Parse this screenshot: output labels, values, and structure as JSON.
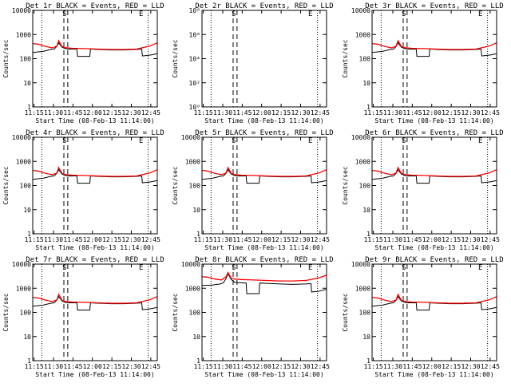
{
  "chart_data": [
    {
      "type": "line",
      "title": "Det 1r BLACK = Events, RED = LLD",
      "xlabel": "Start Time (08-Feb-13 11:14:00)",
      "ylabel": "Counts/sec",
      "log_y": true,
      "x_ticks": [
        "11:15",
        "11:30",
        "11:45",
        "12:00",
        "12:15",
        "12:30",
        "12:45"
      ],
      "x_tick_minutes": [
        1,
        16,
        31,
        46,
        61,
        76,
        91
      ],
      "xlim_minutes": [
        0,
        96
      ],
      "y_ticks": [
        "1",
        "10",
        "100",
        "1000",
        "10000"
      ],
      "ylim": [
        1,
        10000
      ],
      "markers": [
        {
          "label": "S",
          "x_minute": 24.5
        },
        {
          "label": "E",
          "x_minute": 83.5
        }
      ],
      "series": [
        {
          "color": "#000000",
          "x": [
            0,
            8,
            14,
            16.5,
            18.5,
            20,
            22.5,
            25,
            27.5,
            34,
            34.5,
            44,
            44.5,
            50,
            60,
            70,
            80,
            84,
            84.5,
            90,
            92,
            96
          ],
          "y": [
            180,
            200,
            240,
            250,
            320,
            450,
            300,
            260,
            250,
            250,
            125,
            125,
            250,
            240,
            230,
            230,
            240,
            250,
            130,
            140,
            145,
            160
          ]
        },
        {
          "color": "#ff0000",
          "x": [
            0,
            4,
            10,
            15,
            18.5,
            20,
            22.5,
            25,
            30,
            40,
            50,
            60,
            70,
            80,
            90,
            96
          ],
          "y": [
            420,
            400,
            320,
            280,
            330,
            560,
            320,
            285,
            270,
            260,
            250,
            240,
            240,
            250,
            330,
            450
          ]
        }
      ]
    },
    {
      "type": "line",
      "title": "Det 2r BLACK = Events, RED = LLD",
      "xlabel": "Start Time (08-Feb-13 11:14:00)",
      "ylabel": "Counts/sec",
      "log_y": true,
      "x_ticks": [
        "11:15",
        "11:30",
        "11:45",
        "12:00",
        "12:15",
        "12:30",
        "12:45"
      ],
      "x_tick_minutes": [
        1,
        16,
        31,
        46,
        61,
        76,
        91
      ],
      "xlim_minutes": [
        0,
        96
      ],
      "y_ticks": [
        "10⁰",
        "10²",
        "10⁴",
        "10⁶",
        "10⁸"
      ],
      "y_tick_values": [
        1,
        100,
        10000,
        1000000,
        100000000
      ],
      "ylim": [
        1,
        100000000
      ],
      "markers": [
        {
          "label": "S",
          "x_minute": 24.5
        },
        {
          "label": "E",
          "x_minute": 83.5
        }
      ],
      "series": []
    },
    {
      "type": "line",
      "title": "Det 3r BLACK = Events, RED = LLD",
      "xlabel": "Start Time (08-Feb-13 11:14:00)",
      "ylabel": "Counts/sec",
      "log_y": true,
      "x_ticks": [
        "11:15",
        "11:30",
        "11:45",
        "12:00",
        "12:15",
        "12:30",
        "12:45"
      ],
      "x_tick_minutes": [
        1,
        16,
        31,
        46,
        61,
        76,
        91
      ],
      "xlim_minutes": [
        0,
        96
      ],
      "y_ticks": [
        "1",
        "10",
        "100",
        "1000",
        "10000"
      ],
      "ylim": [
        1,
        10000
      ],
      "markers": [
        {
          "label": "S",
          "x_minute": 24.5
        },
        {
          "label": "E",
          "x_minute": 83.5
        }
      ],
      "series": [
        {
          "color": "#000000",
          "x": [
            0,
            8,
            14,
            16.5,
            18.5,
            20,
            22.5,
            25,
            27.5,
            34,
            34.5,
            44,
            44.5,
            50,
            60,
            70,
            80,
            84,
            84.5,
            90,
            92,
            96
          ],
          "y": [
            180,
            200,
            240,
            250,
            320,
            450,
            300,
            260,
            250,
            250,
            125,
            125,
            250,
            240,
            230,
            230,
            240,
            250,
            130,
            140,
            145,
            160
          ]
        },
        {
          "color": "#ff0000",
          "x": [
            0,
            4,
            10,
            15,
            18.5,
            20,
            22.5,
            25,
            30,
            40,
            50,
            60,
            70,
            80,
            90,
            96
          ],
          "y": [
            420,
            400,
            320,
            280,
            330,
            560,
            320,
            285,
            270,
            260,
            250,
            240,
            240,
            250,
            330,
            450
          ]
        }
      ]
    },
    {
      "type": "line",
      "title": "Det 4r BLACK = Events, RED = LLD",
      "xlabel": "Start Time (08-Feb-13 11:14:00)",
      "ylabel": "Counts/sec",
      "log_y": true,
      "x_ticks": [
        "11:15",
        "11:30",
        "11:45",
        "12:00",
        "12:15",
        "12:30",
        "12:45"
      ],
      "x_tick_minutes": [
        1,
        16,
        31,
        46,
        61,
        76,
        91
      ],
      "xlim_minutes": [
        0,
        96
      ],
      "y_ticks": [
        "1",
        "10",
        "100",
        "1000",
        "10000"
      ],
      "ylim": [
        1,
        10000
      ],
      "markers": [
        {
          "label": "S",
          "x_minute": 24.5
        },
        {
          "label": "E",
          "x_minute": 83.5
        }
      ],
      "series": [
        {
          "color": "#000000",
          "x": [
            0,
            8,
            14,
            16.5,
            18.5,
            20,
            22.5,
            25,
            27.5,
            34,
            34.5,
            44,
            44.5,
            50,
            60,
            70,
            80,
            84,
            84.5,
            90,
            92,
            96
          ],
          "y": [
            180,
            200,
            240,
            250,
            320,
            450,
            300,
            260,
            250,
            250,
            125,
            125,
            250,
            240,
            230,
            230,
            240,
            250,
            130,
            140,
            145,
            160
          ]
        },
        {
          "color": "#ff0000",
          "x": [
            0,
            4,
            10,
            15,
            18.5,
            20,
            22.5,
            25,
            30,
            40,
            50,
            60,
            70,
            80,
            90,
            96
          ],
          "y": [
            420,
            400,
            320,
            280,
            330,
            560,
            320,
            285,
            270,
            260,
            250,
            240,
            240,
            250,
            330,
            450
          ]
        }
      ]
    },
    {
      "type": "line",
      "title": "Det 5r BLACK = Events, RED = LLD",
      "xlabel": "Start Time (08-Feb-13 11:14:00)",
      "ylabel": "Counts/sec",
      "log_y": true,
      "x_ticks": [
        "11:15",
        "11:30",
        "11:45",
        "12:00",
        "12:15",
        "12:30",
        "12:45"
      ],
      "x_tick_minutes": [
        1,
        16,
        31,
        46,
        61,
        76,
        91
      ],
      "xlim_minutes": [
        0,
        96
      ],
      "y_ticks": [
        "1",
        "10",
        "100",
        "1000",
        "10000"
      ],
      "ylim": [
        1,
        10000
      ],
      "markers": [
        {
          "label": "S",
          "x_minute": 24.5
        },
        {
          "label": "E",
          "x_minute": 83.5
        }
      ],
      "series": [
        {
          "color": "#000000",
          "x": [
            0,
            8,
            14,
            16.5,
            18.5,
            20,
            22.5,
            25,
            27.5,
            34,
            34.5,
            44,
            44.5,
            50,
            60,
            70,
            80,
            84,
            84.5,
            90,
            92,
            96
          ],
          "y": [
            180,
            200,
            240,
            250,
            320,
            450,
            300,
            260,
            250,
            250,
            125,
            125,
            250,
            240,
            230,
            230,
            240,
            250,
            130,
            140,
            145,
            160
          ]
        },
        {
          "color": "#ff0000",
          "x": [
            0,
            4,
            10,
            15,
            18.5,
            20,
            22.5,
            25,
            30,
            40,
            50,
            60,
            70,
            80,
            90,
            96
          ],
          "y": [
            420,
            400,
            320,
            280,
            330,
            560,
            320,
            285,
            270,
            260,
            250,
            240,
            240,
            250,
            330,
            450
          ]
        }
      ]
    },
    {
      "type": "line",
      "title": "Det 6r BLACK = Events, RED = LLD",
      "xlabel": "Start Time (08-Feb-13 11:14:00)",
      "ylabel": "Counts/sec",
      "log_y": true,
      "x_ticks": [
        "11:15",
        "11:30",
        "11:45",
        "12:00",
        "12:15",
        "12:30",
        "12:45"
      ],
      "x_tick_minutes": [
        1,
        16,
        31,
        46,
        61,
        76,
        91
      ],
      "xlim_minutes": [
        0,
        96
      ],
      "y_ticks": [
        "1",
        "10",
        "100",
        "1000",
        "10000"
      ],
      "ylim": [
        1,
        10000
      ],
      "markers": [
        {
          "label": "S",
          "x_minute": 24.5
        },
        {
          "label": "E",
          "x_minute": 83.5
        }
      ],
      "series": [
        {
          "color": "#000000",
          "x": [
            0,
            8,
            14,
            16.5,
            18.5,
            20,
            22.5,
            25,
            27.5,
            34,
            34.5,
            44,
            44.5,
            50,
            60,
            70,
            80,
            84,
            84.5,
            90,
            92,
            96
          ],
          "y": [
            180,
            200,
            240,
            250,
            320,
            450,
            300,
            260,
            250,
            250,
            125,
            125,
            250,
            240,
            230,
            230,
            240,
            250,
            130,
            140,
            145,
            160
          ]
        },
        {
          "color": "#ff0000",
          "x": [
            0,
            4,
            10,
            15,
            18.5,
            20,
            22.5,
            25,
            30,
            40,
            50,
            60,
            70,
            80,
            90,
            96
          ],
          "y": [
            420,
            400,
            320,
            280,
            330,
            560,
            320,
            285,
            270,
            260,
            250,
            240,
            240,
            250,
            330,
            450
          ]
        }
      ]
    },
    {
      "type": "line",
      "title": "Det 7r BLACK = Events, RED = LLD",
      "xlabel": "Start Time (08-Feb-13 11:14:00)",
      "ylabel": "Counts/sec",
      "log_y": true,
      "x_ticks": [
        "11:15",
        "11:30",
        "11:45",
        "12:00",
        "12:15",
        "12:30",
        "12:45"
      ],
      "x_tick_minutes": [
        1,
        16,
        31,
        46,
        61,
        76,
        91
      ],
      "xlim_minutes": [
        0,
        96
      ],
      "y_ticks": [
        "1",
        "10",
        "100",
        "1000",
        "10000"
      ],
      "ylim": [
        1,
        10000
      ],
      "markers": [
        {
          "label": "S",
          "x_minute": 24.5
        },
        {
          "label": "E",
          "x_minute": 83.5
        }
      ],
      "series": [
        {
          "color": "#000000",
          "x": [
            0,
            8,
            14,
            16.5,
            18.5,
            20,
            22.5,
            25,
            27.5,
            34,
            34.5,
            44,
            44.5,
            50,
            60,
            70,
            80,
            84,
            84.5,
            90,
            92,
            96
          ],
          "y": [
            180,
            200,
            240,
            250,
            320,
            450,
            300,
            260,
            250,
            250,
            125,
            125,
            250,
            240,
            230,
            230,
            240,
            250,
            130,
            140,
            145,
            160
          ]
        },
        {
          "color": "#ff0000",
          "x": [
            0,
            4,
            10,
            15,
            18.5,
            20,
            22.5,
            25,
            30,
            40,
            50,
            60,
            70,
            80,
            90,
            96
          ],
          "y": [
            420,
            400,
            320,
            280,
            330,
            560,
            320,
            285,
            270,
            260,
            250,
            240,
            240,
            250,
            330,
            450
          ]
        }
      ]
    },
    {
      "type": "line",
      "title": "Det 8r BLACK = Events, RED = LLD",
      "xlabel": "Start Time (08-Feb-13 11:14:00)",
      "ylabel": "Counts/sec",
      "log_y": true,
      "x_ticks": [
        "11:15",
        "11:30",
        "11:45",
        "12:00",
        "12:15",
        "12:30",
        "12:45"
      ],
      "x_tick_minutes": [
        1,
        16,
        31,
        46,
        61,
        76,
        91
      ],
      "xlim_minutes": [
        0,
        96
      ],
      "y_ticks": [
        "1",
        "10",
        "100",
        "1000",
        "10000"
      ],
      "ylim": [
        1,
        10000
      ],
      "markers": [
        {
          "label": "S",
          "x_minute": 24.5
        },
        {
          "label": "E",
          "x_minute": 83.5
        }
      ],
      "series": [
        {
          "color": "#000000",
          "x": [
            0,
            8,
            14,
            16.5,
            18.5,
            20,
            22.5,
            25,
            27.5,
            34,
            34.5,
            44,
            44.5,
            50,
            60,
            70,
            80,
            84,
            84.5,
            90,
            92,
            96
          ],
          "y": [
            1300,
            1350,
            1500,
            1700,
            2500,
            4000,
            2300,
            1800,
            1700,
            1650,
            600,
            600,
            1650,
            1600,
            1500,
            1450,
            1500,
            1550,
            700,
            750,
            800,
            900
          ]
        },
        {
          "color": "#ff0000",
          "x": [
            0,
            4,
            10,
            15,
            18.5,
            20,
            22.5,
            25,
            30,
            40,
            50,
            60,
            70,
            80,
            90,
            96
          ],
          "y": [
            3000,
            2900,
            2400,
            2200,
            3000,
            4500,
            2600,
            2400,
            2300,
            2200,
            2100,
            2000,
            2000,
            2100,
            2700,
            3500
          ]
        }
      ]
    },
    {
      "type": "line",
      "title": "Det 9r BLACK = Events, RED = LLD",
      "xlabel": "Start Time (08-Feb-13 11:14:00)",
      "ylabel": "Counts/sec",
      "log_y": true,
      "x_ticks": [
        "11:15",
        "11:30",
        "11:45",
        "12:00",
        "12:15",
        "12:30",
        "12:45"
      ],
      "x_tick_minutes": [
        1,
        16,
        31,
        46,
        61,
        76,
        91
      ],
      "xlim_minutes": [
        0,
        96
      ],
      "y_ticks": [
        "1",
        "10",
        "100",
        "1000",
        "10000"
      ],
      "ylim": [
        1,
        10000
      ],
      "markers": [
        {
          "label": "S",
          "x_minute": 24.5
        },
        {
          "label": "E",
          "x_minute": 83.5
        }
      ],
      "series": [
        {
          "color": "#000000",
          "x": [
            0,
            8,
            14,
            16.5,
            18.5,
            20,
            22.5,
            25,
            27.5,
            34,
            34.5,
            44,
            44.5,
            50,
            60,
            70,
            80,
            84,
            84.5,
            90,
            92,
            96
          ],
          "y": [
            180,
            200,
            240,
            250,
            320,
            450,
            300,
            260,
            250,
            250,
            125,
            125,
            250,
            240,
            230,
            230,
            240,
            250,
            130,
            140,
            145,
            160
          ]
        },
        {
          "color": "#ff0000",
          "x": [
            0,
            4,
            10,
            15,
            18.5,
            20,
            22.5,
            25,
            30,
            40,
            50,
            60,
            70,
            80,
            90,
            96
          ],
          "y": [
            420,
            400,
            320,
            280,
            330,
            560,
            320,
            285,
            270,
            260,
            250,
            240,
            240,
            250,
            330,
            450
          ]
        }
      ]
    }
  ]
}
